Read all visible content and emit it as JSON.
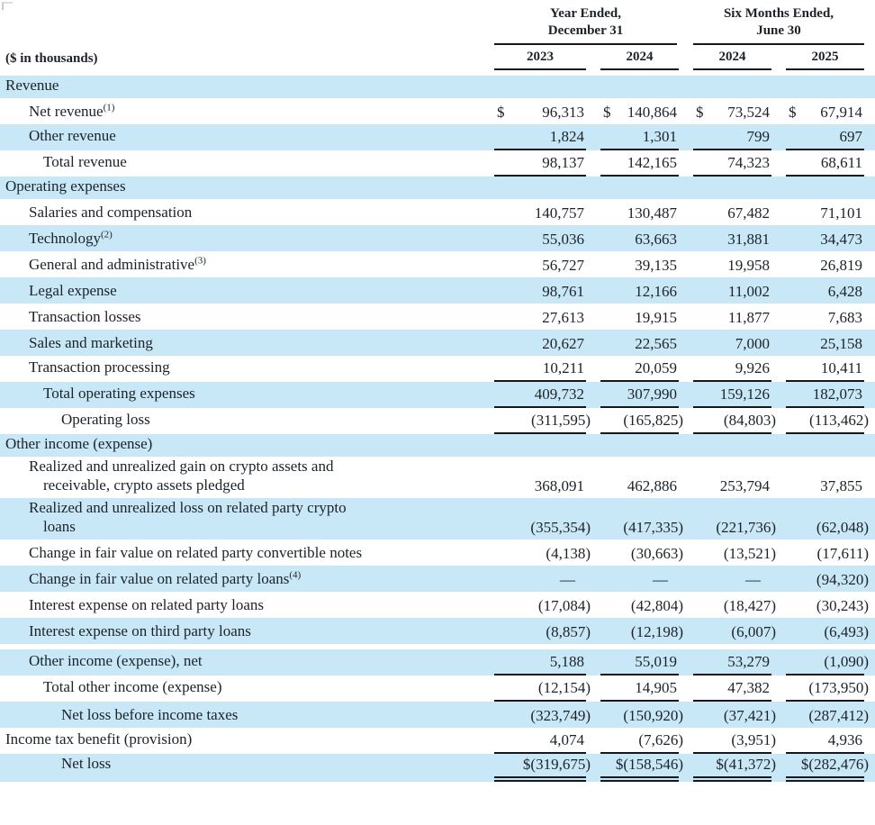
{
  "theme": {
    "band_blue": "#c9e8f7",
    "line_color": "#14181b",
    "text_color": "#1c2228",
    "background": "#ffffff"
  },
  "header": {
    "units_label": "($ in thousands)",
    "groups": [
      {
        "line1": "Year Ended,",
        "line2": "December 31"
      },
      {
        "line1": "Six Months Ended,",
        "line2": "June 30"
      }
    ],
    "years": [
      "2023",
      "2024",
      "2024",
      "2025"
    ]
  },
  "table": {
    "currency_symbol": "$",
    "empty_symbol": "—",
    "rows": [
      {
        "type": "section",
        "label": "Revenue",
        "indent": 0,
        "bg": "blue"
      },
      {
        "type": "item",
        "label": "Net revenue",
        "sup": "(1)",
        "indent": 1,
        "bg": "white",
        "underline": "none",
        "dollar": true,
        "values": [
          "96,313",
          "140,864",
          "73,524",
          "67,914"
        ]
      },
      {
        "type": "item",
        "label": "Other revenue",
        "indent": 1,
        "bg": "blue",
        "underline": "single",
        "values": [
          "1,824",
          "1,301",
          "799",
          "697"
        ]
      },
      {
        "type": "item",
        "label": "Total revenue",
        "indent": 2,
        "bg": "white",
        "underline": "single",
        "values": [
          "98,137",
          "142,165",
          "74,323",
          "68,611"
        ]
      },
      {
        "type": "section",
        "label": "Operating expenses",
        "indent": 0,
        "bg": "blue"
      },
      {
        "type": "item",
        "label": "Salaries and compensation",
        "indent": 1,
        "bg": "white",
        "underline": "none",
        "values": [
          "140,757",
          "130,487",
          "67,482",
          "71,101"
        ]
      },
      {
        "type": "item",
        "label": "Technology",
        "sup": "(2)",
        "indent": 1,
        "bg": "blue",
        "underline": "none",
        "values": [
          "55,036",
          "63,663",
          "31,881",
          "34,473"
        ]
      },
      {
        "type": "item",
        "label": "General and administrative",
        "sup": "(3)",
        "indent": 1,
        "bg": "white",
        "underline": "none",
        "values": [
          "56,727",
          "39,135",
          "19,958",
          "26,819"
        ]
      },
      {
        "type": "item",
        "label": "Legal expense",
        "indent": 1,
        "bg": "blue",
        "underline": "none",
        "values": [
          "98,761",
          "12,166",
          "11,002",
          "6,428"
        ]
      },
      {
        "type": "item",
        "label": "Transaction losses",
        "indent": 1,
        "bg": "white",
        "underline": "none",
        "values": [
          "27,613",
          "19,915",
          "11,877",
          "7,683"
        ]
      },
      {
        "type": "item",
        "label": "Sales and marketing",
        "indent": 1,
        "bg": "blue",
        "underline": "none",
        "values": [
          "20,627",
          "22,565",
          "7,000",
          "25,158"
        ]
      },
      {
        "type": "item",
        "label": "Transaction processing",
        "indent": 1,
        "bg": "white",
        "underline": "single",
        "values": [
          "10,211",
          "20,059",
          "9,926",
          "10,411"
        ]
      },
      {
        "type": "item",
        "label": "Total operating expenses",
        "indent": 2,
        "bg": "blue",
        "underline": "single",
        "values": [
          "409,732",
          "307,990",
          "159,126",
          "182,073"
        ]
      },
      {
        "type": "item",
        "label": "Operating loss",
        "indent": 3,
        "bg": "white",
        "underline": "single",
        "values": [
          "(311,595)",
          "(165,825)",
          "(84,803)",
          "(113,462)"
        ]
      },
      {
        "type": "section",
        "label": "Other income (expense)",
        "indent": 0,
        "bg": "blue"
      },
      {
        "type": "item",
        "label": "Realized and unrealized gain on crypto assets and",
        "label2": "receivable, crypto assets pledged",
        "indent": 1,
        "bg": "white",
        "underline": "none",
        "values": [
          "368,091",
          "462,886",
          "253,794",
          "37,855"
        ]
      },
      {
        "type": "item",
        "label": "Realized and unrealized loss on related party crypto",
        "label2": "loans",
        "indent": 1,
        "bg": "blue",
        "underline": "none",
        "values": [
          "(355,354)",
          "(417,335)",
          "(221,736)",
          "(62,048)"
        ]
      },
      {
        "type": "item",
        "label": "Change in fair value on related party convertible notes",
        "indent": 1,
        "bg": "white",
        "underline": "none",
        "values": [
          "(4,138)",
          "(30,663)",
          "(13,521)",
          "(17,611)"
        ]
      },
      {
        "type": "item",
        "label": "Change in fair value on related party loans",
        "sup": "(4)",
        "indent": 1,
        "bg": "blue",
        "underline": "none",
        "values": [
          "—",
          "—",
          "—",
          "(94,320)"
        ]
      },
      {
        "type": "item",
        "label": "Interest expense on related party loans",
        "indent": 1,
        "bg": "white",
        "underline": "none",
        "values": [
          "(17,084)",
          "(42,804)",
          "(18,427)",
          "(30,243)"
        ]
      },
      {
        "type": "item",
        "label": "Interest expense on third party loans",
        "indent": 1,
        "bg": "blue",
        "underline": "none",
        "values": [
          "(8,857)",
          "(12,198)",
          "(6,007)",
          "(6,493)"
        ]
      },
      {
        "type": "spacer"
      },
      {
        "type": "item",
        "label": "Other income (expense), net",
        "indent": 1,
        "bg": "blue",
        "underline": "single",
        "values": [
          "5,188",
          "55,019",
          "53,279",
          "(1,090)"
        ]
      },
      {
        "type": "item",
        "label": "Total other income (expense)",
        "indent": 2,
        "bg": "white",
        "underline": "single",
        "values": [
          "(12,154)",
          "14,905",
          "47,382",
          "(173,950)"
        ]
      },
      {
        "type": "item",
        "label": "Net loss before income taxes",
        "indent": 3,
        "bg": "blue",
        "underline": "none",
        "values": [
          "(323,749)",
          "(150,920)",
          "(37,421)",
          "(287,412)"
        ]
      },
      {
        "type": "item",
        "label": "Income tax benefit (provision)",
        "indent": 0,
        "bg": "white",
        "underline": "single",
        "values": [
          "4,074",
          "(7,626)",
          "(3,951)",
          "4,936"
        ]
      },
      {
        "type": "item",
        "label": "Net loss",
        "indent": 3,
        "bg": "blue",
        "underline": "double",
        "values": [
          "$(319,675)",
          "$(158,546)",
          "$(41,372)",
          "$(282,476)"
        ]
      }
    ]
  }
}
